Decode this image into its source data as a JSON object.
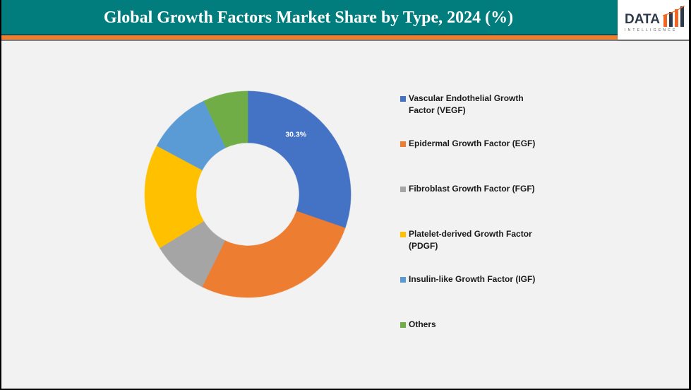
{
  "header": {
    "title": "Global Growth Factors Market Share by Type, 2024 (%)",
    "logo_text": "DATA",
    "logo_subtext": "INTELLIGENCE"
  },
  "colors": {
    "header_bg": "#017d7d",
    "accent_orange": "#ed7d31",
    "background": "#f2f2f2"
  },
  "legend": {
    "items": [
      {
        "label": "Vascular Endothelial Growth Factor (VEGF)",
        "color": "#4472c4"
      },
      {
        "label": "Epidermal Growth Factor (EGF)",
        "color": "#ed7d31"
      },
      {
        "label": "Fibroblast Growth Factor (FGF)",
        "color": "#a5a5a5"
      },
      {
        "label": "Platelet-derived Growth Factor (PDGF)",
        "color": "#ffc000"
      },
      {
        "label": "Insulin-like Growth Factor (IGF)",
        "color": "#5b9bd5"
      },
      {
        "label": "Others",
        "color": "#70ad47"
      }
    ]
  },
  "chart_data": {
    "type": "pie",
    "subtype": "donut",
    "title": "Global Growth Factors Market Share by Type, 2024 (%)",
    "categories": [
      "Vascular Endothelial Growth Factor (VEGF)",
      "Epidermal Growth Factor (EGF)",
      "Fibroblast Growth Factor (FGF)",
      "Platelet-derived Growth Factor (PDGF)",
      "Insulin-like Growth Factor (IGF)",
      "Others"
    ],
    "values": [
      30.3,
      27.0,
      9.0,
      16.5,
      10.2,
      7.0
    ],
    "colors": [
      "#4472c4",
      "#ed7d31",
      "#a5a5a5",
      "#ffc000",
      "#5b9bd5",
      "#70ad47"
    ],
    "data_labels": [
      {
        "category": "Vascular Endothelial Growth Factor (VEGF)",
        "text": "30.3%"
      }
    ],
    "legend_position": "right",
    "start_angle_deg": 0,
    "direction": "clockwise"
  }
}
